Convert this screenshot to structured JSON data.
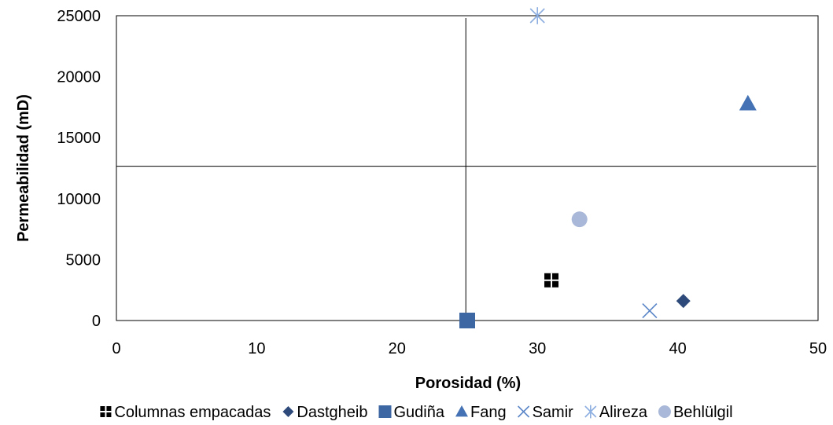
{
  "chart_data": {
    "type": "scatter",
    "title": "",
    "xlabel": "Porosidad (%)",
    "ylabel": "Permeabilidad (mD)",
    "xlim": [
      0,
      50
    ],
    "ylim": [
      0,
      25000
    ],
    "xticks": [
      0,
      10,
      20,
      30,
      40,
      50
    ],
    "yticks": [
      0,
      5000,
      10000,
      15000,
      20000,
      25000
    ],
    "grid": false,
    "legend_position": "bottom",
    "crosshair": {
      "x": 24.9,
      "y": 12650
    },
    "series": [
      {
        "name": "Columnas empacadas",
        "marker": "plus-square",
        "color": "#000000",
        "points": [
          [
            31,
            3300
          ]
        ]
      },
      {
        "name": "Dastgheib",
        "marker": "diamond",
        "color": "#2e4a7a",
        "points": [
          [
            40.4,
            1600
          ]
        ]
      },
      {
        "name": "Gudiña",
        "marker": "square",
        "color": "#3d67a3",
        "points": [
          [
            25,
            0
          ]
        ]
      },
      {
        "name": "Fang",
        "marker": "triangle",
        "color": "#4472b4",
        "points": [
          [
            45,
            17800
          ]
        ]
      },
      {
        "name": "Samir",
        "marker": "x",
        "color": "#5b86c8",
        "points": [
          [
            38,
            800
          ]
        ]
      },
      {
        "name": "Alireza",
        "marker": "asterisk",
        "color": "#8caee0",
        "points": [
          [
            30,
            25000
          ]
        ]
      },
      {
        "name": "Behlülgil",
        "marker": "circle",
        "color": "#a9b8d8",
        "points": [
          [
            33,
            8300
          ]
        ]
      }
    ]
  }
}
